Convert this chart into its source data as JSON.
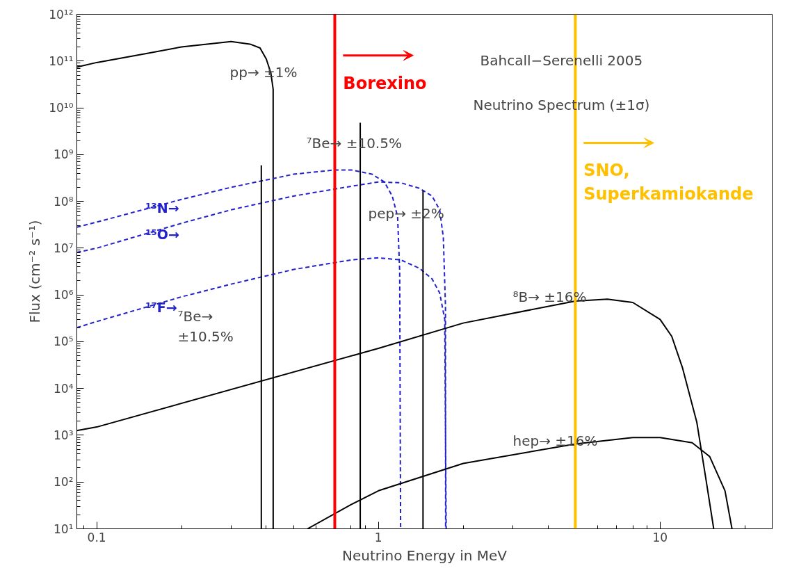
{
  "chart_data": {
    "type": "line",
    "xlabel": "Neutrino Energy in MeV",
    "ylabel": "Flux (cm⁻² s⁻¹)",
    "log": "xy",
    "grid": false,
    "marker": "none",
    "xlim": [
      0.085,
      25
    ],
    "ylim": [
      10,
      1000000000000.0
    ],
    "xticks": [
      0.1,
      1,
      10
    ],
    "yticks": [
      {
        "value": 10,
        "label": "10¹"
      },
      {
        "value": 100,
        "label": "10²"
      },
      {
        "value": 1000,
        "label": "10³"
      },
      {
        "value": 10000.0,
        "label": "10⁴"
      },
      {
        "value": 100000.0,
        "label": "10⁵"
      },
      {
        "value": 1000000.0,
        "label": "10⁶"
      },
      {
        "value": 10000000.0,
        "label": "10⁷"
      },
      {
        "value": 100000000.0,
        "label": "10⁸"
      },
      {
        "value": 1000000000.0,
        "label": "10⁹"
      },
      {
        "value": 10000000000.0,
        "label": "10¹⁰"
      },
      {
        "value": 100000000000.0,
        "label": "10¹¹"
      },
      {
        "value": 1000000000000.0,
        "label": "10¹²"
      }
    ],
    "series": [
      {
        "color": "#000000",
        "line_style": "solid",
        "x": [
          0.085,
          0.1,
          0.15,
          0.2,
          0.3,
          0.35,
          0.38,
          0.4,
          0.415,
          0.423,
          0.4231
        ],
        "values": [
          74000000000.0,
          93000000000.0,
          145000000000.0,
          200000000000.0,
          260000000000.0,
          230000000000.0,
          190000000000.0,
          110000000000.0,
          56000000000.0,
          25000000000.0,
          10
        ]
      },
      {
        "name": "¹³N→",
        "color": "#2222cc",
        "line_style": "dashed",
        "x": [
          0.085,
          0.1,
          0.2,
          0.3,
          0.5,
          0.7,
          0.8,
          0.95,
          1.05,
          1.12,
          1.17,
          1.19,
          1.199
        ],
        "values": [
          28000000.0,
          36000000.0,
          110000000.0,
          200000000.0,
          380000000.0,
          470000000.0,
          470000000.0,
          380000000.0,
          260000000.0,
          130000000.0,
          47000000.0,
          3200000.0,
          10
        ]
      },
      {
        "name": "¹⁵O→",
        "color": "#2222cc",
        "line_style": "dashed",
        "x": [
          0.085,
          0.1,
          0.2,
          0.3,
          0.5,
          0.8,
          1.0,
          1.2,
          1.4,
          1.55,
          1.65,
          1.7,
          1.73,
          1.732
        ],
        "values": [
          8100000.0,
          10000000.0,
          34000000.0,
          66000000.0,
          130000000.0,
          210000000.0,
          260000000.0,
          250000000.0,
          190000000.0,
          130000000.0,
          66000000.0,
          17000000.0,
          590000.0,
          10
        ]
      },
      {
        "name": "¹⁷F→",
        "color": "#2222cc",
        "line_style": "dashed",
        "x": [
          0.085,
          0.1,
          0.2,
          0.3,
          0.5,
          0.8,
          1.0,
          1.2,
          1.4,
          1.55,
          1.65,
          1.72,
          1.74
        ],
        "values": [
          200000.0,
          270000.0,
          910000.0,
          1700000.0,
          3500000.0,
          5600000.0,
          6200000.0,
          5600000.0,
          3700000.0,
          2200000.0,
          1100000.0,
          300000.0,
          10
        ]
      },
      {
        "color": "#000000",
        "line_style": "solid",
        "x": [
          0.085,
          0.1,
          1,
          2,
          5,
          6.5,
          8,
          10,
          11,
          12,
          13.5,
          14.5,
          15.5
        ],
        "values": [
          1260.0,
          1500.0,
          72000.0,
          250000.0,
          740000.0,
          810000.0,
          690000.0,
          300000.0,
          130000.0,
          28000.0,
          1900.0,
          130.0,
          10
        ]
      },
      {
        "color": "#000000",
        "line_style": "solid",
        "x": [
          0.56,
          0.8,
          1,
          2,
          5,
          8,
          10,
          13,
          15,
          17,
          18
        ],
        "values": [
          10,
          33,
          65,
          250,
          650,
          890,
          890,
          690,
          350,
          65,
          10
        ]
      },
      {
        "color": "#000000",
        "line_style": "solid",
        "x": [
          0.384,
          0.384
        ],
        "values": [
          10,
          590000000.0
        ]
      },
      {
        "color": "#000000",
        "line_style": "solid",
        "x": [
          0.862,
          0.862
        ],
        "values": [
          10,
          4800000000.0
        ]
      },
      {
        "color": "#000000",
        "line_style": "solid",
        "x": [
          1.44,
          1.44
        ],
        "values": [
          10,
          170000000.0
        ]
      }
    ],
    "ref_lines": [
      {
        "axis": "x",
        "value": 0.7,
        "label": "Borexino",
        "color": "#ff0000"
      },
      {
        "axis": "x",
        "value": 5,
        "label": "SNO,\nSuperkamiokande",
        "color": "#ffc000"
      }
    ],
    "annotations": [
      "Bahcall−Serenelli 2005",
      "Neutrino Spectrum (±1σ)",
      "pp→ ±1%",
      "⁷Be→ ±10.5%",
      "⁷Be→\n±10.5%",
      "pep→ ±2%",
      "⁸B→ ±16%",
      "hep→ ±16%"
    ]
  }
}
